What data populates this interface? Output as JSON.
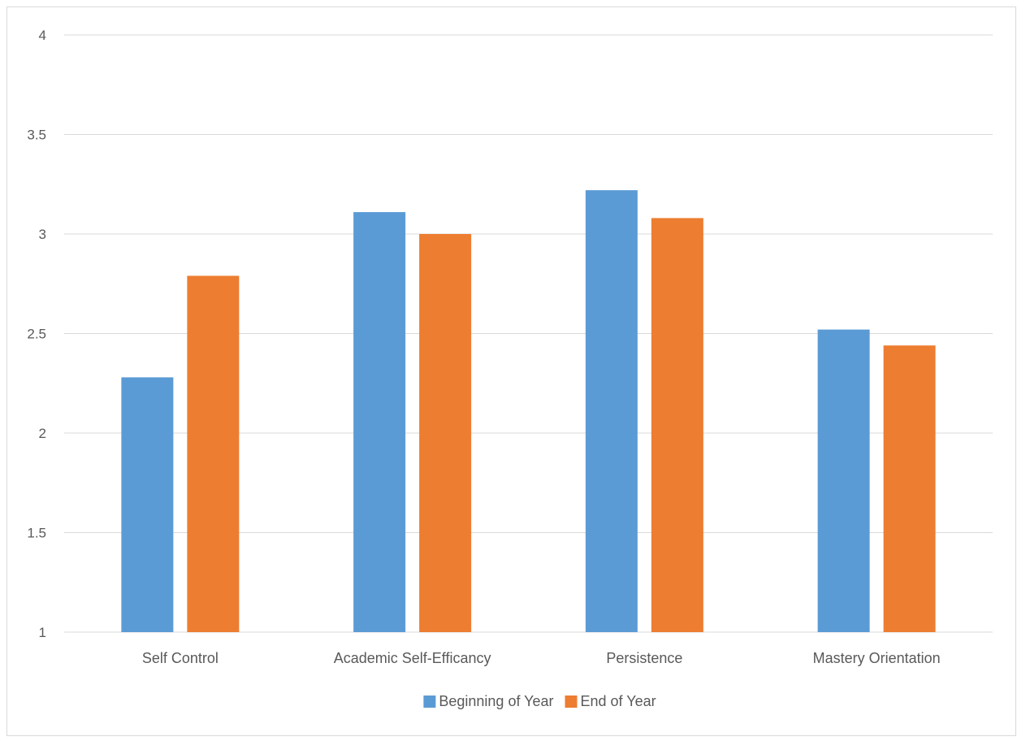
{
  "chart_data": {
    "type": "bar",
    "title": "",
    "xlabel": "",
    "ylabel": "",
    "categories": [
      "Self Control",
      "Academic Self-Efficancy",
      "Persistence",
      "Mastery Orientation"
    ],
    "series": [
      {
        "name": "Beginning of Year",
        "color": "#5b9bd5",
        "values": [
          2.28,
          3.11,
          3.22,
          2.52
        ]
      },
      {
        "name": "End of Year",
        "color": "#ed7d31",
        "values": [
          2.79,
          3.0,
          3.08,
          2.44
        ]
      }
    ],
    "ylim": [
      1,
      4
    ],
    "yticks": [
      "1",
      "1.5",
      "2",
      "2.5",
      "3",
      "3.5",
      "4"
    ],
    "grid": true,
    "legend_position": "bottom"
  }
}
